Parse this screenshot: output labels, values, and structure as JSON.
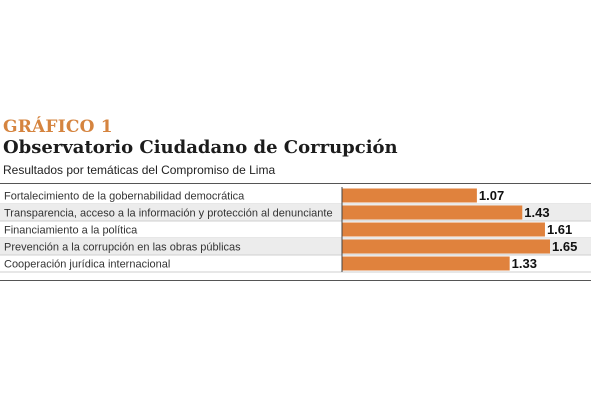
{
  "header": {
    "kicker": "GRÁFICO 1",
    "title": "Observatorio Ciudadano de Corrupción",
    "subtitle": "Resultados por temáticas del Compromiso de Lima"
  },
  "colors": {
    "accent": "#d5843f",
    "bar": "#e0823d",
    "row_shade": "#ececec"
  },
  "chart_data": {
    "type": "bar",
    "orientation": "horizontal",
    "categories": [
      "Fortalecimiento de la gobernabilidad democrática",
      "Transparencia, acceso a la información y protección al denunciante",
      "Financiamiento a la política",
      "Prevención a la corrupción en las obras públicas",
      "Cooperación jurídica internacional"
    ],
    "values": [
      1.07,
      1.43,
      1.61,
      1.65,
      1.33
    ],
    "value_labels": [
      "1.07",
      "1.43",
      "1.61",
      "1.65",
      "1.33"
    ],
    "xlim": [
      0,
      1.75
    ],
    "grid": false,
    "legend": "none"
  }
}
